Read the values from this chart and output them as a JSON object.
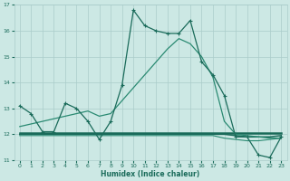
{
  "xlabel": "Humidex (Indice chaleur)",
  "xlim": [
    -0.5,
    23.5
  ],
  "ylim": [
    11,
    17
  ],
  "yticks": [
    11,
    12,
    13,
    14,
    15,
    16,
    17
  ],
  "xticks": [
    0,
    1,
    2,
    3,
    4,
    5,
    6,
    7,
    8,
    9,
    10,
    11,
    12,
    13,
    14,
    15,
    16,
    17,
    18,
    19,
    20,
    21,
    22,
    23
  ],
  "bg_color": "#cce8e4",
  "grid_color": "#aaccca",
  "lc_dark": "#1a6b5a",
  "lc_mid": "#2a8a72",
  "series_main": [
    13.1,
    12.8,
    12.1,
    12.1,
    13.2,
    13.0,
    12.5,
    11.8,
    12.5,
    13.9,
    16.8,
    16.2,
    16.0,
    15.9,
    15.9,
    16.4,
    14.8,
    14.3,
    13.5,
    11.9,
    11.9,
    11.2,
    11.1,
    11.9
  ],
  "series_linear": [
    12.3,
    12.4,
    12.5,
    12.6,
    12.7,
    12.8,
    12.9,
    12.7,
    12.8,
    13.3,
    13.8,
    14.3,
    14.8,
    15.3,
    15.7,
    15.5,
    15.0,
    14.2,
    12.5,
    12.0,
    11.95,
    11.9,
    11.85,
    11.85
  ],
  "series_flat1": [
    12.05,
    12.05,
    12.05,
    12.05,
    12.05,
    12.05,
    12.05,
    12.05,
    12.05,
    12.05,
    12.05,
    12.05,
    12.05,
    12.05,
    12.05,
    12.05,
    12.05,
    12.05,
    12.05,
    12.05,
    12.05,
    12.05,
    12.05,
    12.05
  ],
  "series_flat2": [
    12.0,
    12.0,
    12.0,
    12.0,
    12.0,
    12.0,
    12.0,
    12.0,
    12.0,
    12.0,
    12.0,
    12.0,
    12.0,
    12.0,
    12.0,
    12.0,
    12.0,
    12.0,
    12.0,
    11.95,
    11.9,
    11.9,
    11.9,
    11.95
  ],
  "series_flat3": [
    11.95,
    11.95,
    11.95,
    11.95,
    11.95,
    11.95,
    11.95,
    11.95,
    11.95,
    11.95,
    11.95,
    11.95,
    11.95,
    11.95,
    11.95,
    11.95,
    11.95,
    11.95,
    11.85,
    11.8,
    11.75,
    11.75,
    11.8,
    11.85
  ]
}
